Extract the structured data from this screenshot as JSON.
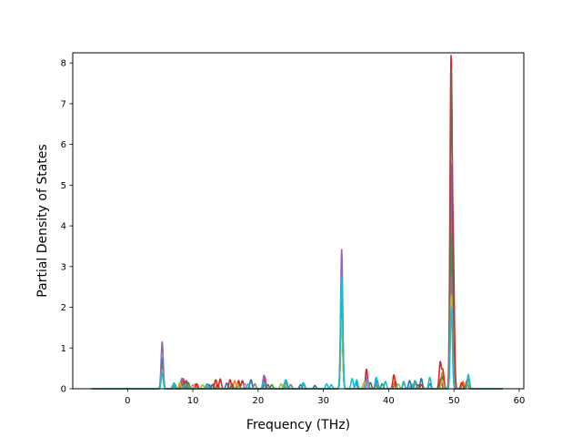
{
  "chart_data": {
    "type": "line",
    "title": "",
    "xlabel": "Frequency (THz)",
    "ylabel": "Partial Density of States",
    "xlim": [
      -8.4,
      60.7
    ],
    "ylim": [
      0,
      8.25
    ],
    "xticks": [
      0,
      10,
      20,
      30,
      40,
      50,
      60
    ],
    "yticks": [
      0,
      1,
      2,
      3,
      4,
      5,
      6,
      7,
      8
    ],
    "xtick_labels": [
      "0",
      "10",
      "20",
      "30",
      "40",
      "50",
      "60"
    ],
    "ytick_labels": [
      "0",
      "1",
      "2",
      "3",
      "4",
      "5",
      "6",
      "7",
      "8"
    ],
    "grid": false,
    "legend": "none",
    "x_domain": [
      -5.5,
      57.5
    ],
    "series": [
      {
        "color": "#1f77b4",
        "peaks": [
          [
            5.3,
            0.75
          ],
          [
            7.2,
            0.12
          ],
          [
            8.8,
            0.18
          ],
          [
            12.5,
            0.1
          ],
          [
            15.2,
            0.14
          ],
          [
            18.9,
            0.22
          ],
          [
            21.0,
            0.15
          ],
          [
            24.3,
            0.2
          ],
          [
            26.5,
            0.1
          ],
          [
            28.7,
            0.08
          ],
          [
            32.8,
            2.6
          ],
          [
            35.0,
            0.15
          ],
          [
            36.6,
            0.28
          ],
          [
            38.2,
            0.22
          ],
          [
            41.0,
            0.18
          ],
          [
            43.2,
            0.2
          ],
          [
            45.0,
            0.25
          ],
          [
            46.3,
            0.12
          ],
          [
            48.2,
            0.35
          ],
          [
            49.6,
            3.2
          ],
          [
            52.2,
            0.28
          ]
        ]
      },
      {
        "color": "#ff7f0e",
        "peaks": [
          [
            5.3,
            0.55
          ],
          [
            8.6,
            0.2
          ],
          [
            10.4,
            0.12
          ],
          [
            13.1,
            0.12
          ],
          [
            16.4,
            0.2
          ],
          [
            21.0,
            0.22
          ],
          [
            24.0,
            0.12
          ],
          [
            32.8,
            2.2
          ],
          [
            36.8,
            0.2
          ],
          [
            40.8,
            0.12
          ],
          [
            48.2,
            0.4
          ],
          [
            49.6,
            4.5
          ],
          [
            51.4,
            0.18
          ],
          [
            52.2,
            0.3
          ]
        ]
      },
      {
        "color": "#2ca02c",
        "peaks": [
          [
            5.3,
            0.6
          ],
          [
            9.3,
            0.15
          ],
          [
            13.8,
            0.1
          ],
          [
            17.0,
            0.15
          ],
          [
            22.1,
            0.1
          ],
          [
            27.0,
            0.12
          ],
          [
            32.8,
            2.1
          ],
          [
            36.6,
            0.25
          ],
          [
            39.0,
            0.12
          ],
          [
            44.1,
            0.18
          ],
          [
            48.2,
            0.3
          ],
          [
            49.6,
            3.8
          ],
          [
            52.2,
            0.22
          ]
        ]
      },
      {
        "color": "#d62728",
        "peaks": [
          [
            5.3,
            0.5
          ],
          [
            8.5,
            0.25
          ],
          [
            10.6,
            0.12
          ],
          [
            13.5,
            0.22
          ],
          [
            14.2,
            0.24
          ],
          [
            15.7,
            0.22
          ],
          [
            17.0,
            0.2
          ],
          [
            17.6,
            0.2
          ],
          [
            21.0,
            0.3
          ],
          [
            32.8,
            2.3
          ],
          [
            36.6,
            0.48
          ],
          [
            40.8,
            0.34
          ],
          [
            42.3,
            0.15
          ],
          [
            45.0,
            0.1
          ],
          [
            47.9,
            0.65
          ],
          [
            48.3,
            0.45
          ],
          [
            49.55,
            7.9
          ],
          [
            49.9,
            3.1
          ],
          [
            51.2,
            0.15
          ],
          [
            52.2,
            0.3
          ]
        ]
      },
      {
        "color": "#9467bd",
        "peaks": [
          [
            5.3,
            1.15
          ],
          [
            8.3,
            0.25
          ],
          [
            20.9,
            0.33
          ],
          [
            32.8,
            3.42
          ],
          [
            36.6,
            0.3
          ],
          [
            49.6,
            5.5
          ],
          [
            52.2,
            0.25
          ]
        ]
      },
      {
        "color": "#8c564b",
        "peaks": [
          [
            5.3,
            0.4
          ],
          [
            9.0,
            0.2
          ],
          [
            13.0,
            0.1
          ],
          [
            16.0,
            0.12
          ],
          [
            21.5,
            0.1
          ],
          [
            32.8,
            1.8
          ],
          [
            37.2,
            0.15
          ],
          [
            44.5,
            0.1
          ],
          [
            48.0,
            0.25
          ],
          [
            49.6,
            7.85
          ],
          [
            52.0,
            0.2
          ]
        ]
      },
      {
        "color": "#e377c2",
        "peaks": [
          [
            5.3,
            0.45
          ],
          [
            10.0,
            0.1
          ],
          [
            18.0,
            0.12
          ],
          [
            32.8,
            1.9
          ],
          [
            36.6,
            0.18
          ],
          [
            49.6,
            2.5
          ],
          [
            52.2,
            0.18
          ]
        ]
      },
      {
        "color": "#7f7f7f",
        "peaks": [
          [
            5.3,
            0.5
          ],
          [
            7.0,
            0.1
          ],
          [
            12.2,
            0.12
          ],
          [
            19.5,
            0.12
          ],
          [
            25.0,
            0.1
          ],
          [
            32.8,
            2.0
          ],
          [
            38.0,
            0.12
          ],
          [
            43.5,
            0.12
          ],
          [
            48.2,
            0.2
          ],
          [
            49.6,
            2.8
          ],
          [
            52.2,
            0.2
          ]
        ]
      },
      {
        "color": "#bcbd22",
        "peaks": [
          [
            5.3,
            0.45
          ],
          [
            8.0,
            0.15
          ],
          [
            11.5,
            0.1
          ],
          [
            16.8,
            0.12
          ],
          [
            23.5,
            0.12
          ],
          [
            32.8,
            1.7
          ],
          [
            36.2,
            0.15
          ],
          [
            41.5,
            0.12
          ],
          [
            48.2,
            0.22
          ],
          [
            49.6,
            2.3
          ],
          [
            52.2,
            0.15
          ]
        ]
      },
      {
        "color": "#17becf",
        "peaks": [
          [
            5.3,
            0.42
          ],
          [
            7.1,
            0.14
          ],
          [
            8.9,
            0.12
          ],
          [
            12.1,
            0.1
          ],
          [
            18.5,
            0.12
          ],
          [
            20.8,
            0.15
          ],
          [
            24.2,
            0.22
          ],
          [
            26.9,
            0.15
          ],
          [
            30.5,
            0.12
          ],
          [
            31.2,
            0.1
          ],
          [
            32.8,
            2.75
          ],
          [
            34.4,
            0.25
          ],
          [
            35.1,
            0.22
          ],
          [
            36.8,
            0.2
          ],
          [
            38.1,
            0.28
          ],
          [
            39.5,
            0.18
          ],
          [
            42.3,
            0.18
          ],
          [
            44.0,
            0.2
          ],
          [
            46.3,
            0.28
          ],
          [
            49.6,
            2.0
          ],
          [
            52.2,
            0.35
          ]
        ]
      }
    ]
  }
}
